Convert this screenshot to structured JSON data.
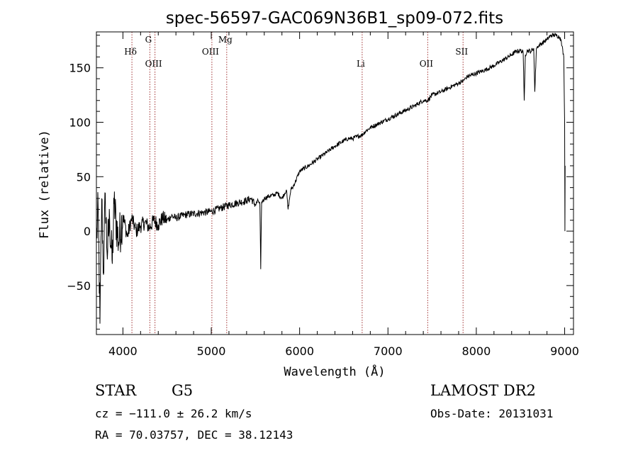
{
  "chart_data": {
    "type": "line",
    "title": "spec-56597-GAC069N36B1_sp09-072.fits",
    "xlabel": "Wavelength (Å)",
    "ylabel": "Flux (relative)",
    "xlim": [
      3700,
      9100
    ],
    "ylim": [
      -95,
      183
    ],
    "xticks": [
      4000,
      5000,
      6000,
      7000,
      8000,
      9000
    ],
    "yticks": [
      -50,
      0,
      50,
      100,
      150
    ],
    "x": [
      3700,
      3720,
      3740,
      3760,
      3780,
      3800,
      3820,
      3850,
      3880,
      3900,
      3950,
      4000,
      4050,
      4100,
      4150,
      4200,
      4250,
      4300,
      4350,
      4400,
      4450,
      4500,
      4550,
      4600,
      4700,
      4800,
      4900,
      5000,
      5100,
      5200,
      5300,
      5400,
      5450,
      5500,
      5530,
      5550,
      5560,
      5570,
      5580,
      5600,
      5650,
      5700,
      5750,
      5800,
      5850,
      5870,
      5890,
      5900,
      5920,
      5950,
      6000,
      6100,
      6200,
      6300,
      6400,
      6500,
      6550,
      6600,
      6650,
      6700,
      6750,
      6800,
      6900,
      7000,
      7100,
      7200,
      7300,
      7400,
      7450,
      7500,
      7600,
      7700,
      7800,
      7850,
      7900,
      8000,
      8100,
      8200,
      8300,
      8400,
      8450,
      8500,
      8530,
      8542,
      8555,
      8580,
      8620,
      8650,
      8662,
      8680,
      8700,
      8750,
      8800,
      8850,
      8900,
      8950,
      8970,
      8990,
      9000,
      9003,
      9005
    ],
    "y": [
      -10,
      20,
      -85,
      30,
      -40,
      35,
      -20,
      10,
      -30,
      25,
      -10,
      15,
      -5,
      12,
      0,
      5,
      8,
      3,
      10,
      6,
      12,
      10,
      14,
      12,
      15,
      16,
      17,
      18,
      21,
      24,
      26,
      28,
      30,
      24,
      28,
      25,
      -35,
      27,
      27,
      30,
      32,
      33,
      35,
      30,
      38,
      20,
      32,
      38,
      40,
      45,
      55,
      60,
      66,
      72,
      78,
      83,
      85,
      85,
      87,
      88,
      92,
      95,
      99,
      103,
      107,
      111,
      115,
      120,
      120,
      125,
      128,
      132,
      136,
      138,
      142,
      145,
      148,
      152,
      157,
      162,
      165,
      166,
      164,
      120,
      162,
      166,
      165,
      168,
      128,
      168,
      170,
      173,
      176,
      180,
      180,
      178,
      170,
      160,
      100,
      0,
      60
    ],
    "spectral_lines": [
      {
        "label": "Hδ",
        "x": 4102,
        "row": 1
      },
      {
        "label": "G",
        "x": 4305,
        "row": 0
      },
      {
        "label": "OIII",
        "x": 4363,
        "row": 2
      },
      {
        "label": "OIII",
        "x": 5007,
        "row": 1
      },
      {
        "label": "Mg",
        "x": 5175,
        "row": 0
      },
      {
        "label": "Li",
        "x": 6708,
        "row": 2
      },
      {
        "label": "OII",
        "x": 7450,
        "row": 2
      },
      {
        "label": "SII",
        "x": 7850,
        "row": 1
      }
    ],
    "line_color": "#000000",
    "marker_line_color": "#a03030"
  },
  "info": {
    "object_class": "STAR",
    "subclass": "G5",
    "survey": "LAMOST DR2",
    "cz": "cz = −111.0 ± 26.2 km/s",
    "obs_date": "Obs-Date: 20131031",
    "radec": "RA =  70.03757, DEC =  38.12143"
  }
}
